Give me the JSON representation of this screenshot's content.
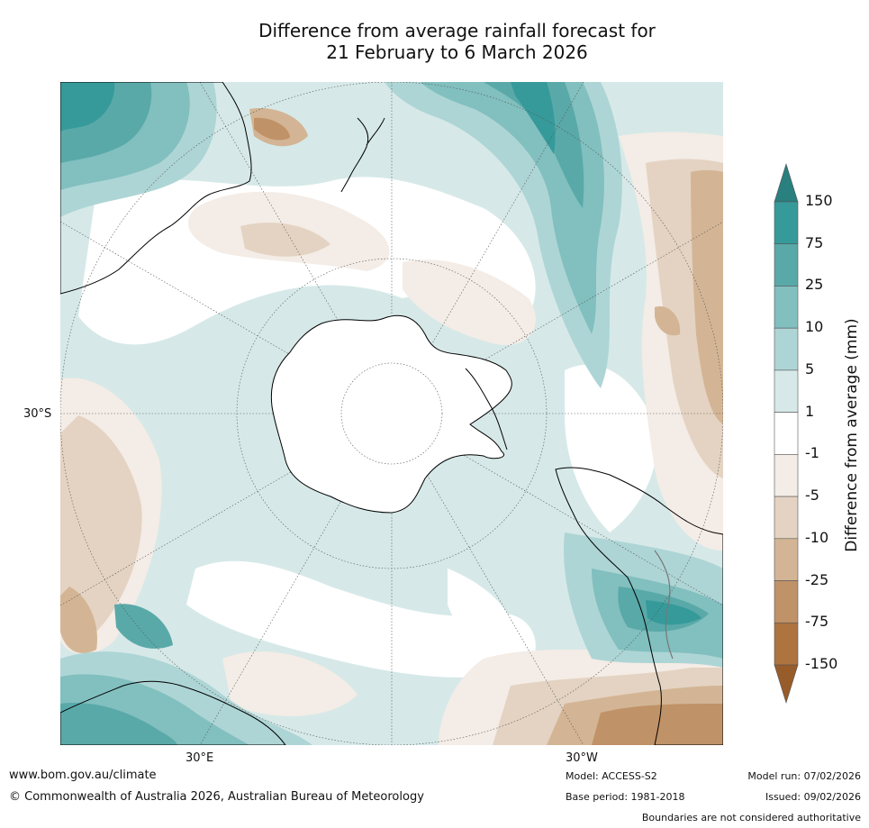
{
  "title": {
    "line1": "Difference from average rainfall forecast for",
    "line2": "21 February to 6 March 2026"
  },
  "map": {
    "projection": "South polar stereographic",
    "graticule_labels": {
      "lat_30s": "30°S",
      "lon_30e": "30°E",
      "lon_30w": "30°W"
    },
    "regions": [
      "Antarctica",
      "Australia",
      "New Zealand",
      "South America",
      "Southern Africa"
    ]
  },
  "colorbar": {
    "title": "Difference from average (mm)",
    "tick_labels": [
      "150",
      "75",
      "25",
      "10",
      "5",
      "1",
      "-1",
      "-5",
      "-10",
      "-25",
      "-75",
      "-150"
    ],
    "colors": [
      "#2a7f7f",
      "#369a9a",
      "#5aa9a9",
      "#82bfbf",
      "#aed5d5",
      "#d6e9e8",
      "#ffffff",
      "#f4ece6",
      "#e4d3c2",
      "#d3b595",
      "#c09268",
      "#ad7440",
      "#985c2a"
    ],
    "extend": "both"
  },
  "footer": {
    "website": "www.bom.gov.au/climate",
    "copyright": "© Commonwealth of Australia 2026, Australian Bureau of Meteorology",
    "model": "Model: ACCESS-S2",
    "base_period": "Base period: 1981-2018",
    "model_run": "Model run: 07/02/2026",
    "issued": "Issued: 09/02/2026",
    "disclaimer": "Boundaries are not considered authoritative"
  }
}
